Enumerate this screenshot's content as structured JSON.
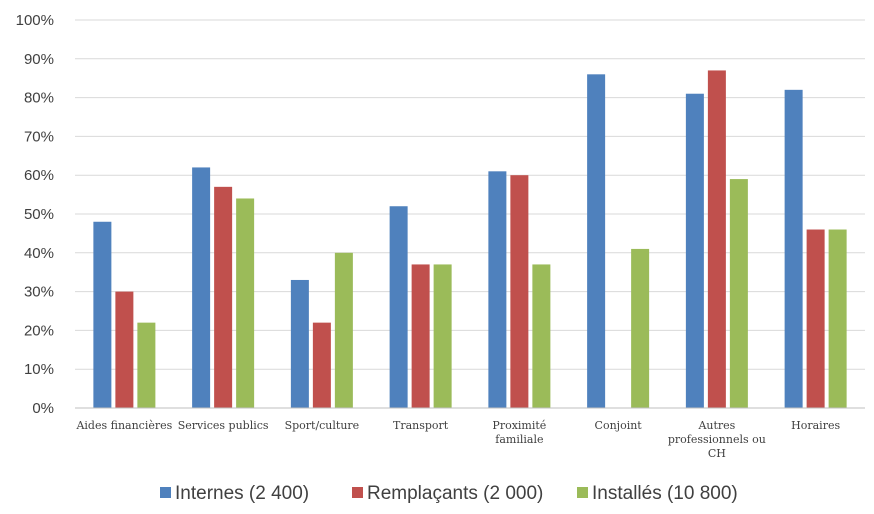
{
  "chart_data": {
    "type": "bar",
    "categories": [
      [
        "Aides financières"
      ],
      [
        "Services publics"
      ],
      [
        "Sport/culture"
      ],
      [
        "Transport"
      ],
      [
        "Proximité",
        "familiale"
      ],
      [
        "Conjoint"
      ],
      [
        "Autres",
        "professionnels ou",
        "CH"
      ],
      [
        "Horaires"
      ]
    ],
    "series": [
      {
        "name": "Internes (2 400)",
        "color": "#4f81bd",
        "values": [
          48,
          62,
          33,
          52,
          61,
          86,
          81,
          82
        ]
      },
      {
        "name": "Remplaçants (2 000)",
        "color": "#c0504d",
        "values": [
          30,
          57,
          22,
          37,
          60,
          null,
          87,
          46
        ]
      },
      {
        "name": "Installés (10 800)",
        "color": "#9bbb59",
        "values": [
          22,
          54,
          40,
          37,
          37,
          41,
          59,
          46
        ]
      }
    ],
    "ylim": [
      0,
      100
    ],
    "yticks": [
      0,
      10,
      20,
      30,
      40,
      50,
      60,
      70,
      80,
      90,
      100
    ],
    "ytick_suffix": "%",
    "grid": true,
    "legend_position": "bottom"
  }
}
